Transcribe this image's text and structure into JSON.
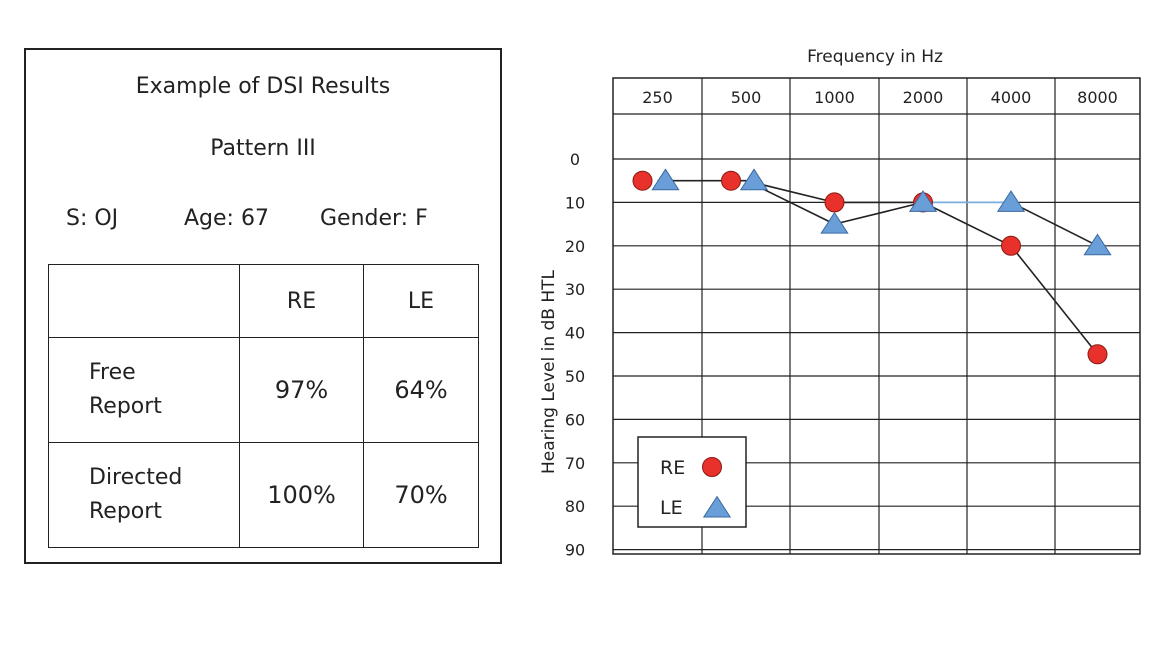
{
  "summary": {
    "title": "Example of DSI Results",
    "subtitle": "Pattern III",
    "subject": "S: OJ",
    "age": "Age: 67",
    "gender": "Gender: F",
    "table": {
      "headers": [
        "",
        "RE",
        "LE"
      ],
      "rows": [
        {
          "label_line1": "Free",
          "label_line2": "Report",
          "re": "97%",
          "le": "64%"
        },
        {
          "label_line1": "Directed",
          "label_line2": "Report",
          "re": "100%",
          "le": "70%"
        }
      ]
    },
    "colors": {
      "re_value": "#6fd35e",
      "le_value": "#e0473c"
    }
  },
  "chart_data": {
    "type": "line",
    "title": "Frequency in Hz",
    "xlabel": "Frequency in Hz",
    "ylabel": "Hearing Level in dB HTL",
    "categories": [
      "250",
      "500",
      "1000",
      "2000",
      "4000",
      "8000"
    ],
    "yticks": [
      "0",
      "10",
      "20",
      "30",
      "40",
      "50",
      "60",
      "70",
      "80",
      "90"
    ],
    "ylim": [
      -10,
      90
    ],
    "y_inverted": true,
    "grid": true,
    "series": [
      {
        "name": "RE",
        "marker": "circle",
        "color": "#e8312a",
        "points": [
          [
            250,
            5
          ],
          [
            500,
            5
          ],
          [
            1000,
            10
          ],
          [
            2000,
            10
          ],
          [
            4000,
            20
          ],
          [
            8000,
            45
          ]
        ]
      },
      {
        "name": "LE",
        "marker": "triangle",
        "color": "#6a9ed8",
        "points": [
          [
            250,
            5
          ],
          [
            500,
            5
          ],
          [
            1000,
            15
          ],
          [
            2000,
            10
          ],
          [
            4000,
            10
          ],
          [
            8000,
            20
          ]
        ]
      }
    ],
    "legend": {
      "placement": "bottom-left",
      "entries": [
        "RE",
        "LE"
      ]
    }
  }
}
